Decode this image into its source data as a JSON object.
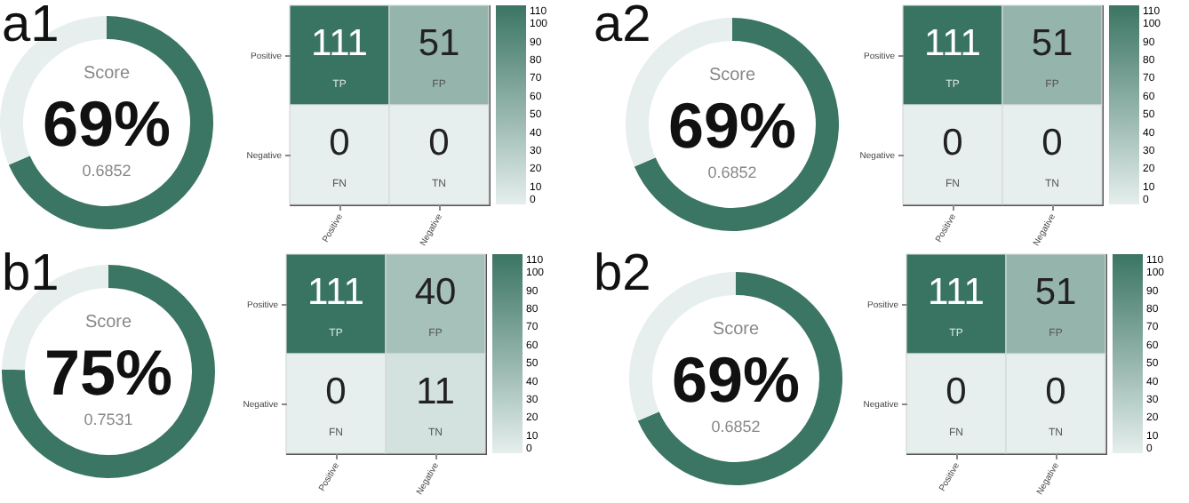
{
  "chart_data": [
    {
      "type": "donut",
      "title": "a1",
      "categories": [
        null,
        null
      ],
      "values": [
        68.52,
        31.48
      ],
      "colors": [
        "#3b7563",
        "#e6efed"
      ],
      "annotations": [
        "Score",
        "69%",
        "0.6852"
      ]
    },
    {
      "type": "heatmap",
      "categories": [
        "Positive",
        "Negative"
      ],
      "y_categories": [
        "Positive",
        "Negative"
      ],
      "cells": [
        [
          111,
          51
        ],
        [
          0,
          0
        ]
      ],
      "data_labels": true,
      "clim": [
        0,
        110
      ],
      "cticks": [
        0,
        10,
        20,
        30,
        40,
        50,
        60,
        70,
        80,
        90,
        100,
        110
      ],
      "annotations": [
        "TP",
        "FP",
        "FN",
        "TN"
      ]
    },
    {
      "type": "donut",
      "title": "a2",
      "categories": [
        null,
        null
      ],
      "values": [
        68.52,
        31.48
      ],
      "colors": [
        "#3b7563",
        "#e6efed"
      ],
      "annotations": [
        "Score",
        "69%",
        "0.6852"
      ]
    },
    {
      "type": "heatmap",
      "categories": [
        "Positive",
        "Negative"
      ],
      "y_categories": [
        "Positive",
        "Negative"
      ],
      "cells": [
        [
          111,
          51
        ],
        [
          0,
          0
        ]
      ],
      "data_labels": true,
      "clim": [
        0,
        110
      ],
      "cticks": [
        0,
        10,
        20,
        30,
        40,
        50,
        60,
        70,
        80,
        90,
        100,
        110
      ],
      "annotations": [
        "TP",
        "FP",
        "FN",
        "TN"
      ]
    },
    {
      "type": "donut",
      "title": "b1",
      "categories": [
        null,
        null
      ],
      "values": [
        75.31,
        24.69
      ],
      "colors": [
        "#3b7563",
        "#e6efed"
      ],
      "annotations": [
        "Score",
        "75%",
        "0.7531"
      ]
    },
    {
      "type": "heatmap",
      "categories": [
        "Positive",
        "Negative"
      ],
      "y_categories": [
        "Positive",
        "Negative"
      ],
      "cells": [
        [
          111,
          40
        ],
        [
          0,
          11
        ]
      ],
      "data_labels": true,
      "clim": [
        0,
        110
      ],
      "cticks": [
        0,
        10,
        20,
        30,
        40,
        50,
        60,
        70,
        80,
        90,
        100,
        110
      ],
      "annotations": [
        "TP",
        "FP",
        "FN",
        "TN"
      ]
    },
    {
      "type": "donut",
      "title": "b2",
      "categories": [
        null,
        null
      ],
      "values": [
        68.52,
        31.48
      ],
      "colors": [
        "#3b7563",
        "#e6efed"
      ],
      "annotations": [
        "Score",
        "69%",
        "0.6852"
      ]
    },
    {
      "type": "heatmap",
      "categories": [
        "Positive",
        "Negative"
      ],
      "y_categories": [
        "Positive",
        "Negative"
      ],
      "cells": [
        [
          111,
          51
        ],
        [
          0,
          0
        ]
      ],
      "data_labels": true,
      "clim": [
        0,
        110
      ],
      "cticks": [
        0,
        10,
        20,
        30,
        40,
        50,
        60,
        70,
        80,
        90,
        100,
        110
      ],
      "annotations": [
        "TP",
        "FP",
        "FN",
        "TN"
      ]
    }
  ]
}
